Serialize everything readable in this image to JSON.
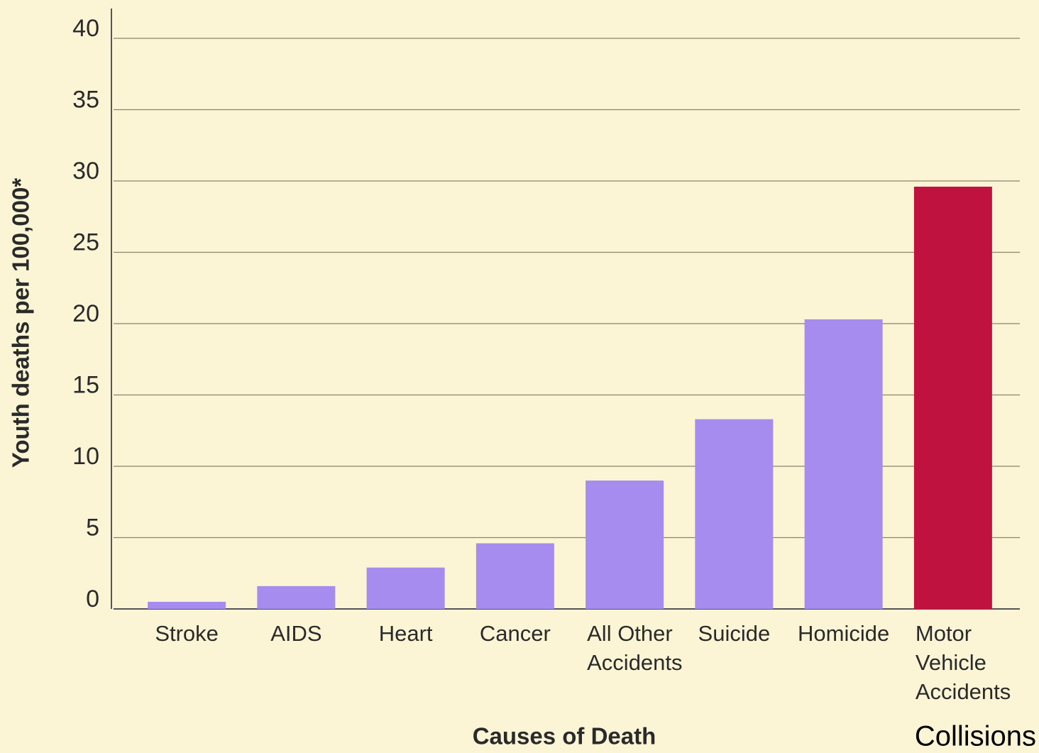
{
  "chart_data": {
    "type": "bar",
    "categories": [
      "Stroke",
      "AIDS",
      "Heart",
      "Cancer",
      "All Other\nAccidents",
      "Suicide",
      "Homicide",
      "Motor\nVehicle\nAccidents"
    ],
    "values": [
      0.5,
      1.6,
      2.9,
      4.6,
      9.0,
      13.3,
      20.3,
      29.6
    ],
    "colors": [
      "#a78cf0",
      "#a78cf0",
      "#a78cf0",
      "#a78cf0",
      "#a78cf0",
      "#a78cf0",
      "#a78cf0",
      "#c0123f"
    ],
    "ylabel": "Youth deaths per 100,000*",
    "xlabel": "Causes of Death",
    "annotation": "Collisions",
    "ylim": [
      0,
      40
    ],
    "yticks": [
      0,
      5,
      10,
      15,
      20,
      25,
      30,
      35,
      40
    ],
    "grid": true
  }
}
